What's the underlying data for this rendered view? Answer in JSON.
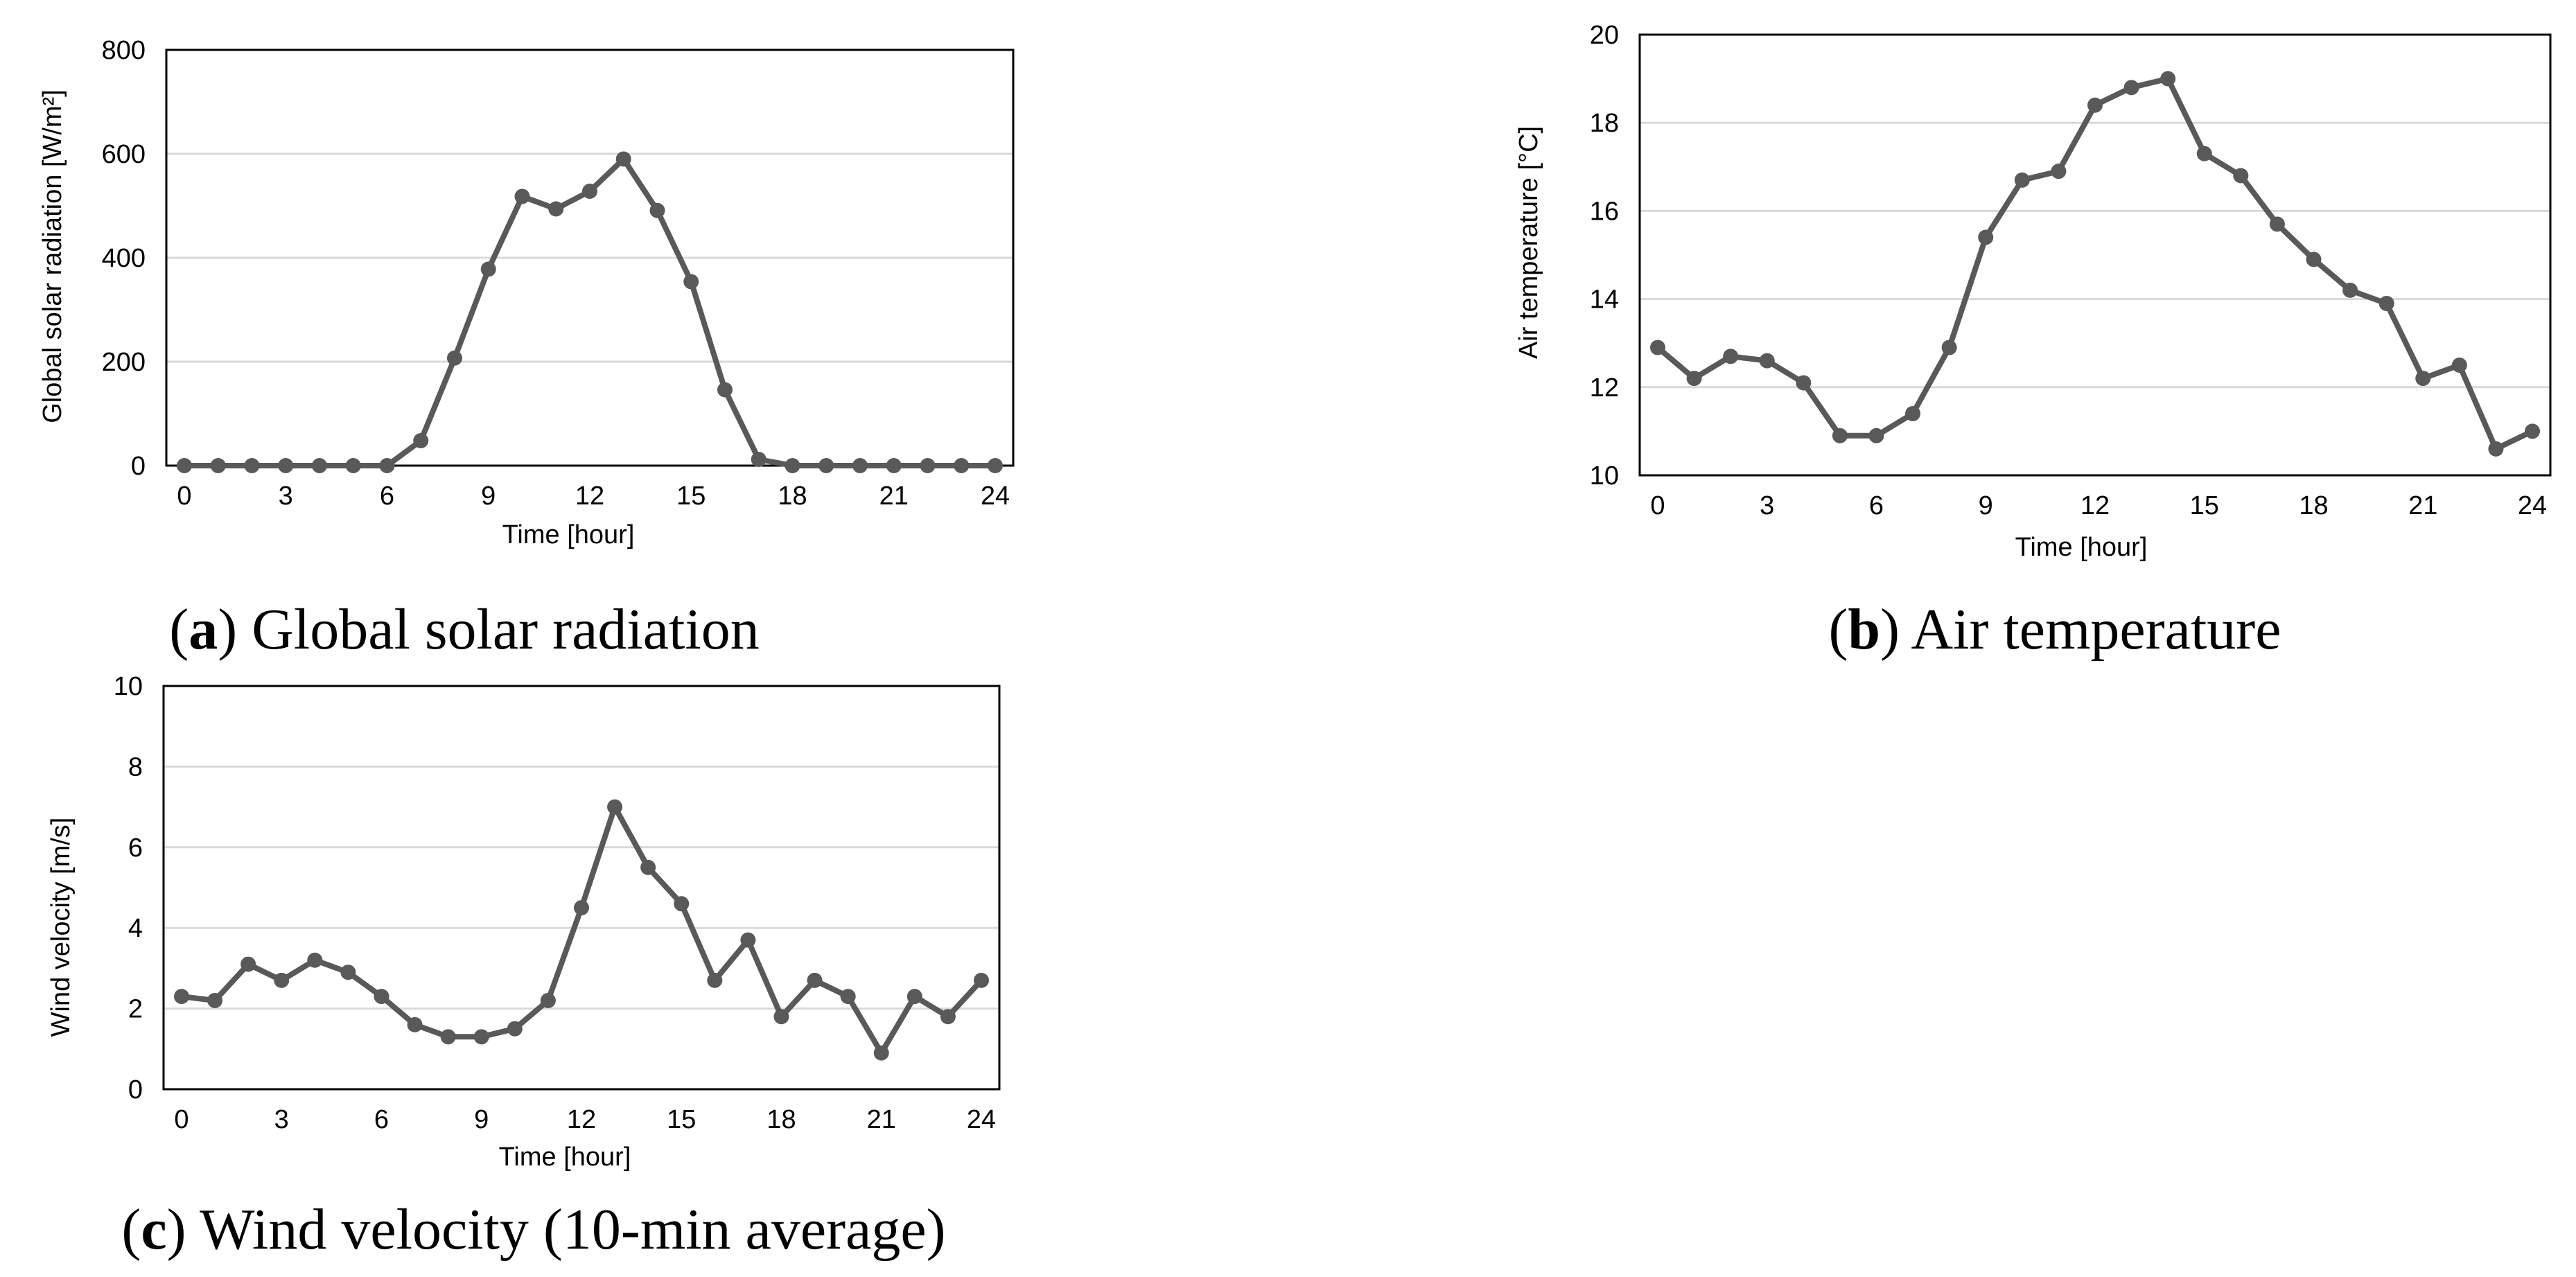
{
  "figure": {
    "colors": {
      "series": "#595959",
      "frame": "#000000",
      "grid": "#d9d9d9"
    }
  },
  "chart_data": [
    {
      "id": "a",
      "type": "line",
      "caption_letter": "a",
      "caption_text": "Global solar radiation",
      "xlabel": "Time [hour]",
      "ylabel": "Global solar radiation [W/m²]",
      "xlim": [
        0,
        24
      ],
      "ylim": [
        0,
        800
      ],
      "xticks": [
        0,
        3,
        6,
        9,
        12,
        15,
        18,
        21,
        24
      ],
      "yticks": [
        0,
        200,
        400,
        600,
        800
      ],
      "grid": true,
      "x": [
        0,
        1,
        2,
        3,
        4,
        5,
        6,
        7,
        8,
        9,
        10,
        11,
        12,
        13,
        14,
        15,
        16,
        17,
        18,
        19,
        20,
        21,
        22,
        23,
        24
      ],
      "y": [
        0,
        0,
        0,
        0,
        0,
        0,
        0,
        48,
        207,
        378,
        518,
        494,
        528,
        590,
        491,
        354,
        146,
        12,
        0,
        0,
        0,
        0,
        0,
        0,
        0
      ]
    },
    {
      "id": "b",
      "type": "line",
      "caption_letter": "b",
      "caption_text": "Air temperature",
      "xlabel": "Time [hour]",
      "ylabel": "Air temperature [°C]",
      "xlim": [
        0,
        24
      ],
      "ylim": [
        10,
        20
      ],
      "xticks": [
        0,
        3,
        6,
        9,
        12,
        15,
        18,
        21,
        24
      ],
      "yticks": [
        10,
        12,
        14,
        16,
        18,
        20
      ],
      "grid": true,
      "x": [
        0,
        1,
        2,
        3,
        4,
        5,
        6,
        7,
        8,
        9,
        10,
        11,
        12,
        13,
        14,
        15,
        16,
        17,
        18,
        19,
        20,
        21,
        22,
        23,
        24
      ],
      "y": [
        12.9,
        12.2,
        12.7,
        12.6,
        12.1,
        10.9,
        10.9,
        11.4,
        12.9,
        15.4,
        16.7,
        16.9,
        18.4,
        18.8,
        19.0,
        17.3,
        16.8,
        15.7,
        14.9,
        14.2,
        13.9,
        12.2,
        12.5,
        10.6,
        11.0
      ]
    },
    {
      "id": "c",
      "type": "line",
      "caption_letter": "c",
      "caption_text": "Wind velocity (10-min average)",
      "xlabel": "Time [hour]",
      "ylabel": "Wind velocity [m/s]",
      "xlim": [
        0,
        24
      ],
      "ylim": [
        0,
        10
      ],
      "xticks": [
        0,
        3,
        6,
        9,
        12,
        15,
        18,
        21,
        24
      ],
      "yticks": [
        0,
        2,
        4,
        6,
        8,
        10
      ],
      "grid": true,
      "x": [
        0,
        1,
        2,
        3,
        4,
        5,
        6,
        7,
        8,
        9,
        10,
        11,
        12,
        13,
        14,
        15,
        16,
        17,
        18,
        19,
        20,
        21,
        22,
        23,
        24
      ],
      "y": [
        2.3,
        2.2,
        3.1,
        2.7,
        3.2,
        2.9,
        2.3,
        1.6,
        1.3,
        1.3,
        1.5,
        2.2,
        4.5,
        7.0,
        5.5,
        4.6,
        2.7,
        3.7,
        1.8,
        2.7,
        2.3,
        0.9,
        2.3,
        1.8,
        2.7
      ]
    }
  ]
}
